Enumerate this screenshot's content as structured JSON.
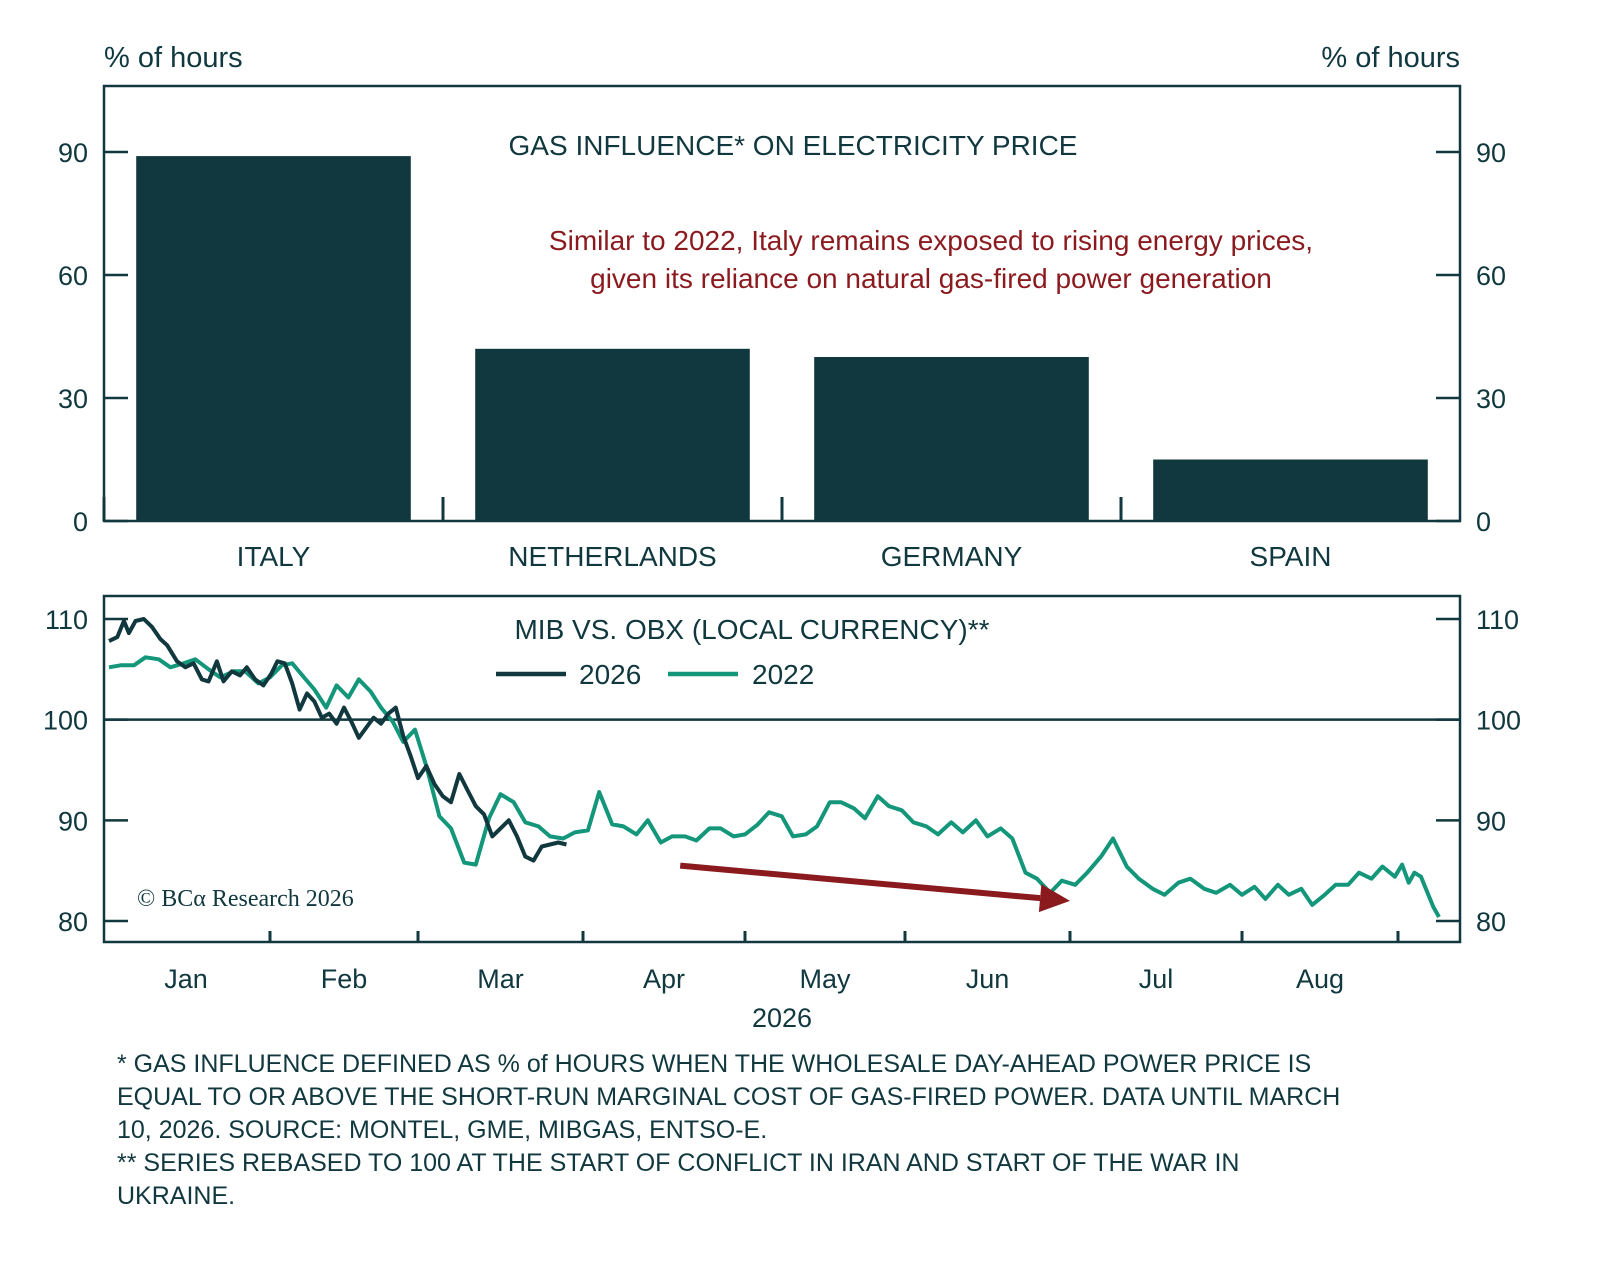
{
  "chart_data": [
    {
      "type": "bar",
      "title": "GAS INFLUENCE* ON ELECTRICITY PRICE",
      "annotation": [
        "Similar to 2022, Italy remains exposed to rising energy prices,",
        "given its reliance on natural gas-fired power generation"
      ],
      "ylabel_left": "% of hours",
      "ylabel_right": "% of hours",
      "categories": [
        "ITALY",
        "NETHERLANDS",
        "GERMANY",
        "SPAIN"
      ],
      "values": [
        89,
        42,
        40,
        15
      ],
      "ylim": [
        0,
        100
      ],
      "yticks": [
        0,
        30,
        60,
        90
      ],
      "colors": {
        "bar": "#10383e",
        "annotation": "#8b1a1f",
        "axis": "#10383e"
      },
      "grid": false
    },
    {
      "type": "line",
      "title": "MIB VS. OBX (LOCAL CURRENCY)**",
      "xlabel": "2026",
      "ylim": [
        79,
        112
      ],
      "yticks": [
        80,
        90,
        100,
        110
      ],
      "reference_line": 100,
      "x_tick_labels": [
        "Jan",
        "Feb",
        "Mar",
        "Apr",
        "May",
        "Jun",
        "Jul",
        "Aug"
      ],
      "legend_placement": "top-center",
      "copyright": "© BCα Research 2026",
      "colors": {
        "2026": "#10383e",
        "2022": "#13967a",
        "arrow": "#8b1a1f",
        "axis": "#10383e"
      },
      "arrow": {
        "from_month": 3.6,
        "from_value": 85.5,
        "to_month": 6.0,
        "to_value": 82.0
      },
      "series": [
        {
          "name": "2026",
          "x_months": [
            0.03,
            0.08,
            0.12,
            0.15,
            0.19,
            0.24,
            0.29,
            0.34,
            0.38,
            0.44,
            0.49,
            0.54,
            0.59,
            0.63,
            0.68,
            0.72,
            0.77,
            0.82,
            0.86,
            0.91,
            0.96,
            1.01,
            1.05,
            1.1,
            1.15,
            1.2,
            1.25,
            1.3,
            1.35,
            1.4,
            1.45,
            1.5,
            1.55,
            1.6,
            1.65,
            1.7,
            1.75,
            1.8,
            1.85,
            1.9,
            1.95,
            2.0,
            2.05,
            2.1,
            2.15,
            2.2,
            2.25,
            2.3,
            2.35,
            2.4,
            2.45,
            2.5,
            2.55,
            2.6,
            2.65,
            2.7,
            2.75,
            2.8,
            2.85,
            2.9
          ],
          "values": [
            107.8,
            108.2,
            109.8,
            108.6,
            109.8,
            110.0,
            109.2,
            108.0,
            107.4,
            105.8,
            105.2,
            105.6,
            104.0,
            103.8,
            105.8,
            103.8,
            104.8,
            104.4,
            105.2,
            104.0,
            103.4,
            104.6,
            105.8,
            105.6,
            103.6,
            101.0,
            102.6,
            101.8,
            100.2,
            100.6,
            99.6,
            101.2,
            99.8,
            98.2,
            99.2,
            100.2,
            99.6,
            100.6,
            101.2,
            98.4,
            96.4,
            94.2,
            95.4,
            93.6,
            92.4,
            91.8,
            94.6,
            93.0,
            91.4,
            90.6,
            88.4,
            89.2,
            90.0,
            88.4,
            86.4,
            86.0,
            87.4,
            87.6,
            87.8,
            87.6
          ]
        },
        {
          "name": "2022",
          "x_months": [
            0.03,
            0.1,
            0.18,
            0.25,
            0.33,
            0.4,
            0.48,
            0.55,
            0.63,
            0.7,
            0.78,
            0.85,
            0.93,
            1.0,
            1.08,
            1.15,
            1.23,
            1.3,
            1.38,
            1.45,
            1.53,
            1.6,
            1.68,
            1.75,
            1.83,
            1.9,
            1.98,
            2.05,
            2.13,
            2.2,
            2.28,
            2.35,
            2.43,
            2.5,
            2.58,
            2.65,
            2.73,
            2.8,
            2.88,
            2.95,
            3.03,
            3.1,
            3.18,
            3.25,
            3.33,
            3.4,
            3.48,
            3.55,
            3.63,
            3.7,
            3.78,
            3.85,
            3.93,
            4.0,
            4.08,
            4.15,
            4.23,
            4.3,
            4.38,
            4.45,
            4.53,
            4.6,
            4.68,
            4.75,
            4.83,
            4.9,
            4.98,
            5.05,
            5.13,
            5.2,
            5.28,
            5.35,
            5.43,
            5.5,
            5.58,
            5.65,
            5.73,
            5.8,
            5.88,
            5.95,
            6.03,
            6.1,
            6.18,
            6.25,
            6.33,
            6.4,
            6.48,
            6.55,
            6.63,
            6.7,
            6.78,
            6.85,
            6.93,
            7.0,
            7.08,
            7.15,
            7.23,
            7.3,
            7.38,
            7.45,
            7.53,
            7.6,
            7.68,
            7.75,
            7.83,
            7.9,
            7.98,
            8.05,
            8.13,
            8.2,
            8.28,
            8.35,
            8.43,
            8.5
          ],
          "values": [
            105.2,
            105.4,
            105.4,
            106.2,
            106.0,
            105.2,
            105.6,
            106.0,
            105.0,
            104.2,
            104.8,
            104.8,
            103.6,
            104.2,
            105.4,
            105.6,
            104.2,
            103.0,
            101.2,
            103.4,
            102.2,
            104.0,
            102.8,
            101.2,
            99.8,
            97.8,
            99.0,
            95.4,
            90.4,
            89.2,
            85.8,
            85.6,
            90.2,
            92.6,
            91.8,
            89.8,
            89.4,
            88.4,
            88.2,
            88.8,
            89.0,
            92.8,
            89.6,
            89.4,
            88.6,
            90.0,
            87.8,
            88.4,
            88.4,
            88.0,
            89.2,
            89.2,
            88.4,
            88.6,
            89.6,
            90.8,
            90.4,
            88.4,
            88.6,
            89.4,
            91.8,
            91.8,
            91.2,
            90.2,
            92.4,
            91.4,
            91.0,
            89.8,
            89.4,
            88.6,
            89.8,
            88.8,
            90.0,
            88.4,
            89.2,
            88.2,
            84.8,
            84.2,
            82.8,
            84.0,
            83.6,
            84.8,
            86.4,
            88.2,
            85.4,
            84.2,
            83.2,
            82.6,
            83.8,
            84.2,
            83.2,
            82.8,
            83.6,
            82.6,
            83.4,
            82.2,
            83.6,
            82.6,
            83.2,
            81.6,
            82.6,
            83.6,
            83.6,
            84.8,
            84.2,
            85.4,
            84.4,
            85.6,
            83.8,
            84.8,
            84.4,
            83.0,
            81.4,
            80.4,
            79.8,
            79.6,
            80.8,
            79.8,
            80.6,
            80.8
          ]
        }
      ]
    }
  ],
  "footnotes": [
    "* GAS INFLUENCE DEFINED AS % of HOURS WHEN THE WHOLESALE DAY-AHEAD POWER PRICE IS\nEQUAL TO OR ABOVE THE SHORT-RUN MARGINAL COST OF GAS-FIRED POWER. DATA UNTIL MARCH\n10, 2026. SOURCE: MONTEL, GME, MIBGAS, ENTSO-E.",
    "** SERIES REBASED TO 100 AT THE START OF CONFLICT IN IRAN AND START OF THE WAR IN\nUKRAINE."
  ]
}
